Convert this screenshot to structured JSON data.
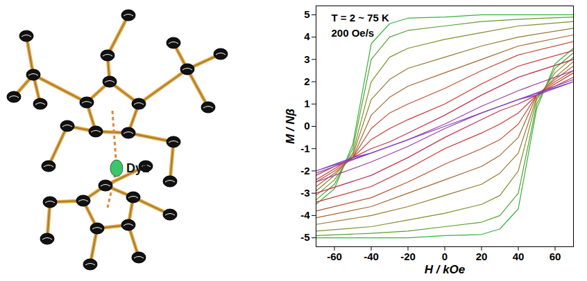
{
  "chart_data": {
    "type": "line",
    "xlabel": "H / kOe",
    "ylabel": "M / Nβ",
    "annotations": [
      "T = 2 ~ 75 K",
      "200 Oe/s"
    ],
    "x": [
      70,
      40,
      20,
      0,
      -20,
      -30,
      -40,
      -50,
      -60,
      -70,
      -70,
      -70,
      -40,
      -20,
      0,
      20,
      30,
      40,
      50,
      60,
      70
    ],
    "series": [
      {
        "color": "#33b33a",
        "values": [
          5.0,
          5.0,
          5.0,
          4.9,
          4.85,
          4.6,
          3.7,
          -0.8,
          -2.8,
          -3.5,
          null,
          -5.0,
          -5.0,
          -5.0,
          -4.9,
          -4.85,
          -4.6,
          -3.7,
          0.8,
          2.8,
          3.5
        ]
      },
      {
        "color": "#5a9e2e",
        "values": [
          4.9,
          4.8,
          4.7,
          4.5,
          4.3,
          4.0,
          3.0,
          -1.0,
          -2.6,
          -3.3,
          null,
          -4.9,
          -4.8,
          -4.7,
          -4.5,
          -4.3,
          -4.0,
          -3.0,
          1.0,
          2.6,
          3.3
        ]
      },
      {
        "color": "#7d8f2c",
        "values": [
          4.7,
          4.5,
          4.2,
          3.9,
          3.5,
          3.1,
          2.0,
          -1.2,
          -2.4,
          -3.1,
          null,
          -4.7,
          -4.5,
          -4.2,
          -3.9,
          -3.5,
          -3.1,
          -2.0,
          1.2,
          2.4,
          3.1
        ]
      },
      {
        "color": "#93782d",
        "values": [
          4.4,
          4.0,
          3.6,
          3.1,
          2.6,
          2.1,
          1.2,
          -1.3,
          -2.2,
          -2.9,
          null,
          -4.4,
          -4.0,
          -3.6,
          -3.1,
          -2.6,
          -2.1,
          -1.2,
          1.3,
          2.2,
          2.9
        ]
      },
      {
        "color": "#a5652f",
        "values": [
          4.1,
          3.6,
          3.0,
          2.4,
          1.8,
          1.3,
          0.5,
          -1.4,
          -2.1,
          -2.7,
          null,
          -4.1,
          -3.6,
          -3.0,
          -2.4,
          -1.8,
          -1.3,
          -0.5,
          1.4,
          2.1,
          2.7
        ]
      },
      {
        "color": "#b85030",
        "values": [
          3.8,
          3.2,
          2.5,
          1.7,
          1.0,
          0.6,
          -0.1,
          -1.4,
          -2.0,
          -2.5,
          null,
          -3.8,
          -3.2,
          -2.5,
          -1.7,
          -1.0,
          -0.6,
          0.1,
          1.4,
          2.0,
          2.5
        ]
      },
      {
        "color": "#c8352e",
        "values": [
          3.4,
          2.7,
          1.9,
          1.0,
          0.3,
          -0.1,
          -0.6,
          -1.4,
          -1.9,
          -2.4,
          null,
          -3.4,
          -2.7,
          -1.9,
          -1.0,
          -0.3,
          0.1,
          0.6,
          1.4,
          1.9,
          2.4
        ]
      },
      {
        "color": "#c0304f",
        "values": [
          3.0,
          2.2,
          1.4,
          0.5,
          -0.3,
          -0.7,
          -1.0,
          -1.4,
          -1.8,
          -2.2,
          null,
          -3.0,
          -2.2,
          -1.4,
          -0.5,
          0.3,
          0.7,
          1.0,
          1.4,
          1.8,
          2.2
        ]
      },
      {
        "color": "#9c3fa0",
        "values": [
          2.5,
          1.6,
          0.9,
          0.1,
          -0.6,
          -0.9,
          -1.2,
          -1.5,
          -1.8,
          -2.1,
          null,
          -2.5,
          -1.6,
          -0.9,
          -0.1,
          0.6,
          0.9,
          1.2,
          1.5,
          1.8,
          2.1
        ]
      },
      {
        "color": "#7b48c8",
        "values": [
          2.0,
          1.2,
          0.6,
          0.0,
          -0.6,
          -0.9,
          -1.2,
          -1.4,
          -1.7,
          -2.0,
          null,
          -2.0,
          -1.2,
          -0.6,
          0.0,
          0.6,
          0.9,
          1.2,
          1.4,
          1.7,
          2.0
        ]
      }
    ],
    "xlim": [
      -70,
      70
    ],
    "xticks": [
      -60,
      -40,
      -20,
      0,
      20,
      40,
      60
    ],
    "ylim": [
      -5.4,
      5.4
    ],
    "yticks": [
      -5,
      -4,
      -3,
      -2,
      -1,
      0,
      1,
      2,
      3,
      4,
      5
    ],
    "grid": false
  },
  "structure": {
    "atom_label": "Dy1"
  }
}
